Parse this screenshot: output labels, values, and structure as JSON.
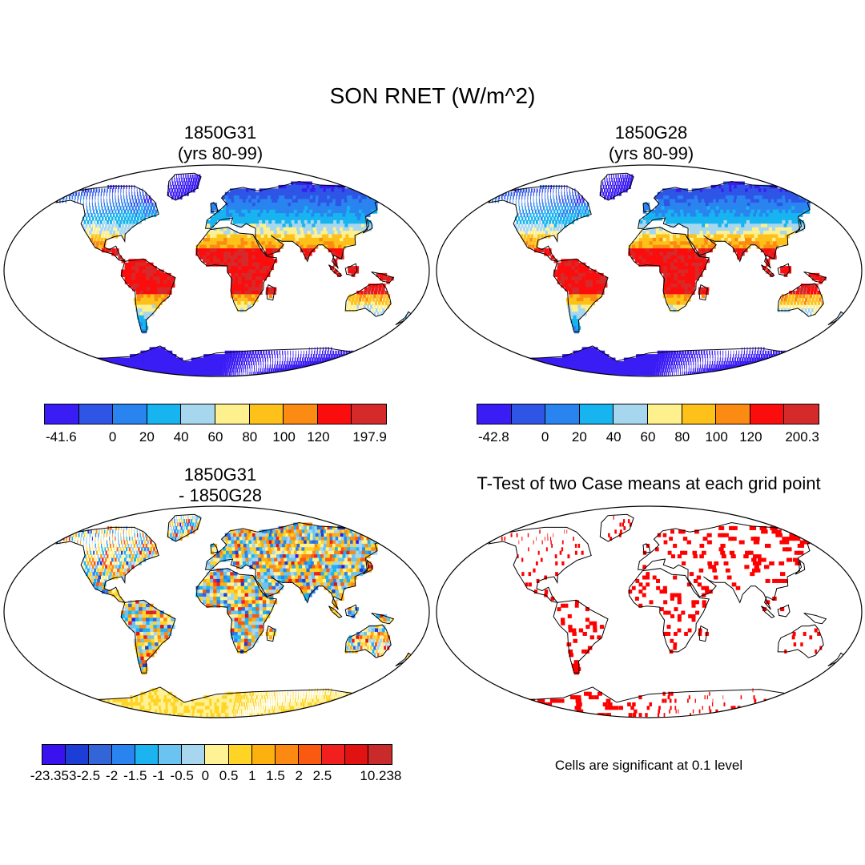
{
  "figure": {
    "title": "SON RNET (W/m^2)"
  },
  "panels": [
    {
      "id": "g31",
      "title_line1": "1850G31",
      "title_line2": "(yrs 80-99)",
      "field": "absolute",
      "colorbar": {
        "colors": [
          "#3a1cf5",
          "#2e55e6",
          "#2a84f0",
          "#17b4f0",
          "#a7d6ef",
          "#fdf08d",
          "#fdc11a",
          "#fb8b12",
          "#fc0d0d",
          "#d62a2a"
        ],
        "labels": [
          "-41.6",
          "0",
          "20",
          "40",
          "60",
          "80",
          "100",
          "120",
          "197.9"
        ]
      }
    },
    {
      "id": "g28",
      "title_line1": "1850G28",
      "title_line2": "(yrs 80-99)",
      "field": "absolute",
      "colorbar": {
        "colors": [
          "#3a1cf5",
          "#2e55e6",
          "#2a84f0",
          "#17b4f0",
          "#a7d6ef",
          "#fdf08d",
          "#fdc11a",
          "#fb8b12",
          "#fc0d0d",
          "#d62a2a"
        ],
        "labels": [
          "-42.8",
          "0",
          "20",
          "40",
          "60",
          "80",
          "100",
          "120",
          "200.3"
        ]
      }
    },
    {
      "id": "diff",
      "title_line1": "1850G31",
      "title_line2": "- 1850G28",
      "field": "difference",
      "colorbar": {
        "colors": [
          "#3a12f0",
          "#1d3ed6",
          "#3165d8",
          "#2a84f0",
          "#1cb4f0",
          "#6ac3f0",
          "#a8d6ef",
          "#fff294",
          "#ffd424",
          "#fdb10e",
          "#fc8a12",
          "#f95a10",
          "#f1201e",
          "#e01212",
          "#c92a2a"
        ],
        "labels": [
          "-23.353",
          "-2.5",
          "-2",
          "-1.5",
          "-1",
          "-0.5",
          "0",
          "0.5",
          "1",
          "1.5",
          "2",
          "2.5",
          "10.238"
        ]
      }
    },
    {
      "id": "ttest",
      "title_line1": "T-Test of two Case means at each grid point",
      "field": "significance",
      "note": "Cells are significant at 0.1 level",
      "sig_color": "#ff0000"
    }
  ]
}
